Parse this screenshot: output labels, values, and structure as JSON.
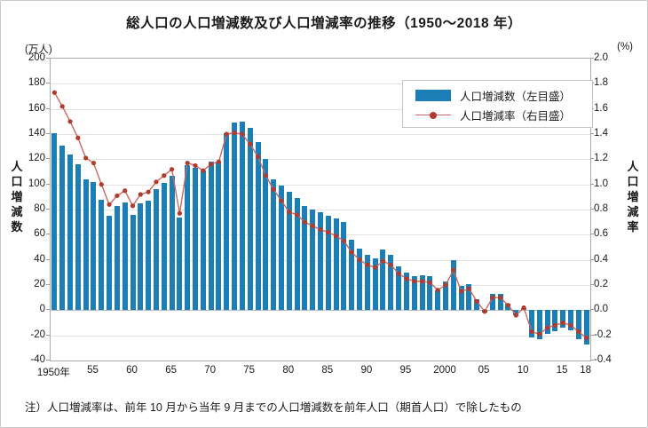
{
  "title": "総人口の人口増減数及び人口増減率の推移（1950～2018 年）",
  "left_axis": {
    "unit": "(万人)",
    "label": "人口増減数",
    "ticks": [
      200,
      180,
      160,
      140,
      120,
      100,
      80,
      60,
      40,
      20,
      0,
      -20,
      -40
    ]
  },
  "right_axis": {
    "unit": "(%)",
    "label": "人口増減率",
    "ticks": [
      "2.0",
      "1.8",
      "1.6",
      "1.4",
      "1.2",
      "1.0",
      "0.8",
      "0.6",
      "0.4",
      "0.2",
      "0.0",
      "-0.2",
      "-0.4"
    ]
  },
  "legend": {
    "bars_label": "人口増減数（左目盛）",
    "line_label": "人口増減率（右目盛）"
  },
  "note": "注）人口増減率は、前年 10 月から当年 9 月までの人口増減数を前年人口（期首人口）で除したもの",
  "colors": {
    "bar": "#1b7fb5",
    "line": "#c96a5f",
    "dot": "#b23a2e"
  },
  "chart_data": {
    "type": "bar+line",
    "title": "総人口の人口増減数及び人口増減率の推移（1950～2018 年）",
    "x_years": [
      1950,
      1951,
      1952,
      1953,
      1954,
      1955,
      1956,
      1957,
      1958,
      1959,
      1960,
      1961,
      1962,
      1963,
      1964,
      1965,
      1966,
      1967,
      1968,
      1969,
      1970,
      1971,
      1972,
      1973,
      1974,
      1975,
      1976,
      1977,
      1978,
      1979,
      1980,
      1981,
      1982,
      1983,
      1984,
      1985,
      1986,
      1987,
      1988,
      1989,
      1990,
      1991,
      1992,
      1993,
      1994,
      1995,
      1996,
      1997,
      1998,
      1999,
      2000,
      2001,
      2002,
      2003,
      2004,
      2005,
      2006,
      2007,
      2008,
      2009,
      2010,
      2011,
      2012,
      2013,
      2014,
      2015,
      2016,
      2017,
      2018
    ],
    "series": [
      {
        "name": "人口増減数（左目盛）",
        "type": "bar",
        "axis": "left",
        "unit": "万人",
        "values": [
          141,
          131,
          124,
          116,
          104,
          102,
          88,
          75,
          83,
          86,
          76,
          85,
          87,
          96,
          101,
          107,
          74,
          115,
          113,
          111,
          118,
          118,
          141,
          149,
          150,
          145,
          134,
          120,
          104,
          99,
          94,
          89,
          83,
          80,
          78,
          75,
          73,
          70,
          56,
          49,
          44,
          41,
          48,
          44,
          35,
          30,
          27,
          28,
          27,
          16,
          23,
          40,
          19,
          21,
          9,
          -2,
          13,
          13,
          5,
          -4,
          2,
          -22,
          -23,
          -19,
          -17,
          -14,
          -16,
          -23,
          -27
        ]
      },
      {
        "name": "人口増減率（右目盛）",
        "type": "line",
        "axis": "right",
        "unit": "%",
        "values": [
          1.73,
          1.62,
          1.5,
          1.37,
          1.21,
          1.17,
          1.0,
          0.84,
          0.91,
          0.95,
          0.83,
          0.92,
          0.94,
          1.02,
          1.07,
          1.12,
          0.77,
          1.17,
          1.15,
          1.11,
          1.16,
          1.18,
          1.4,
          1.41,
          1.4,
          1.32,
          1.22,
          1.07,
          0.96,
          0.87,
          0.78,
          0.76,
          0.7,
          0.67,
          0.64,
          0.62,
          0.59,
          0.55,
          0.46,
          0.4,
          0.36,
          0.34,
          0.39,
          0.36,
          0.29,
          0.25,
          0.23,
          0.23,
          0.22,
          0.16,
          0.2,
          0.32,
          0.15,
          0.17,
          0.07,
          -0.01,
          0.1,
          0.1,
          0.04,
          -0.04,
          0.02,
          -0.17,
          -0.19,
          -0.14,
          -0.12,
          -0.1,
          -0.12,
          -0.17,
          -0.22
        ]
      }
    ],
    "x_tick_labels": [
      "1950年",
      "55",
      "60",
      "65",
      "70",
      "75",
      "80",
      "85",
      "90",
      "95",
      "2000",
      "05",
      "10",
      "15",
      "18"
    ],
    "x_tick_indices": [
      0,
      5,
      10,
      15,
      20,
      25,
      30,
      35,
      40,
      45,
      50,
      55,
      60,
      65,
      68
    ],
    "left_ylim": [
      -40,
      200
    ],
    "right_ylim": [
      -0.4,
      2.0
    ],
    "grid": "horizontal",
    "legend_position": "upper-right-inside"
  }
}
